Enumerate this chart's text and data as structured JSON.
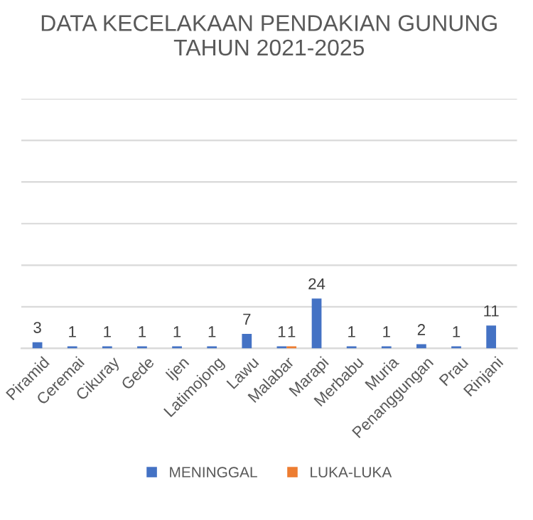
{
  "chart_data": {
    "type": "bar",
    "title": "DATA KECELAKAAN PENDAKIAN GUNUNG\nTAHUN 2021-2025",
    "categories": [
      "Piramid",
      "Ceremai",
      "Cikuray",
      "Gede",
      "Ijen",
      "Latimojong",
      "Lawu",
      "Malabar",
      "Marapi",
      "Merbabu",
      "Muria",
      "Penanggungan",
      "Prau",
      "Rinjani"
    ],
    "series": [
      {
        "name": "MENINGGAL",
        "color": "#4472c4",
        "values": [
          3,
          1,
          1,
          1,
          1,
          1,
          7,
          1,
          24,
          1,
          1,
          2,
          1,
          11
        ]
      },
      {
        "name": "LUKA-LUKA",
        "color": "#ed7d31",
        "values": [
          null,
          null,
          null,
          null,
          null,
          null,
          null,
          1,
          null,
          null,
          null,
          null,
          null,
          null
        ]
      }
    ],
    "ylim": [
      0,
      120
    ],
    "yticks": [
      {
        "value": 0,
        "label": null
      },
      {
        "value": 20,
        "label": null
      },
      {
        "value": 40,
        "label": null
      },
      {
        "value": 60,
        "label": null
      },
      {
        "value": 80,
        "label": null
      },
      {
        "value": 100,
        "label": null
      },
      {
        "value": 120,
        "label": null
      }
    ],
    "tick_labels": "x",
    "grid": "y",
    "legend": "bottom",
    "data_labels": true
  }
}
